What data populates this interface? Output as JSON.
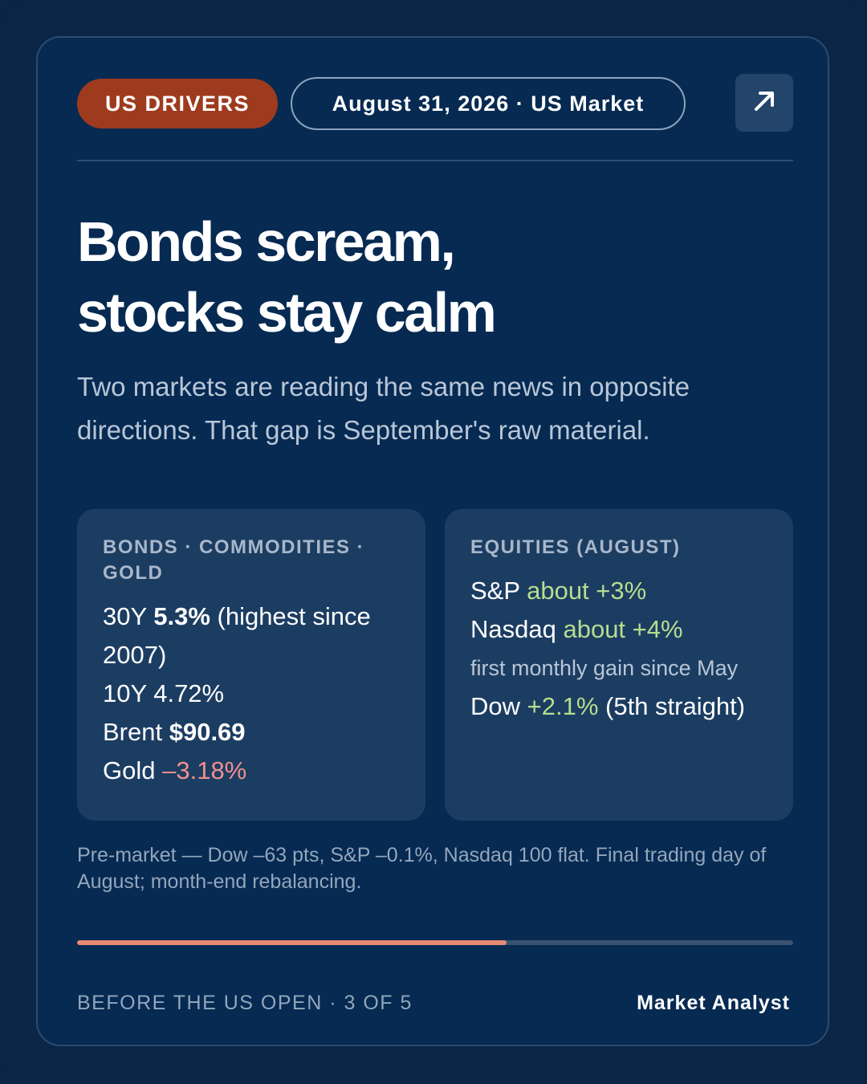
{
  "header": {
    "tag": "US DRIVERS",
    "date": "August 31, 2026 · US Market",
    "open_icon": "arrow-up-right-icon"
  },
  "headline": {
    "line1": "Bonds scream,",
    "line2": "stocks stay calm"
  },
  "subhead": "Two markets are reading the same news in opposite directions. That gap is September's raw material.",
  "bonds_panel": {
    "title": "BONDS · COMMODITIES · GOLD",
    "y30_label": "30Y ",
    "y30_value": "5.3%",
    "y30_note": " (highest since 2007)",
    "y10": "10Y 4.72%",
    "brent_label": "Brent ",
    "brent_value": "$90.69",
    "gold_label": "Gold ",
    "gold_value": "–3.18%"
  },
  "equities_panel": {
    "title": "EQUITIES (AUGUST)",
    "sp_label": "S&P ",
    "sp_value": "about +3%",
    "nasdaq_label": "Nasdaq ",
    "nasdaq_value": "about +4%",
    "nasdaq_note": "first monthly gain since May",
    "dow_label": "Dow ",
    "dow_value": "+2.1%",
    "dow_note": " (5th straight)"
  },
  "footnote": "Pre-market — Dow –63 pts, S&P –0.1%, Nasdaq 100 flat. Final trading day of August; month-end rebalancing.",
  "progress": {
    "fraction": 0.6,
    "current": 3,
    "total": 5
  },
  "footer": {
    "left": "BEFORE THE US OPEN · 3 OF 5",
    "right": "Market Analyst"
  },
  "colors": {
    "background": "#0a2545",
    "card": "#062a52",
    "tag": "#9e3b1e",
    "panel": "#1c3d62",
    "positive": "#b6dd8f",
    "negative": "#f28f8f",
    "progress": "#e88a74"
  }
}
